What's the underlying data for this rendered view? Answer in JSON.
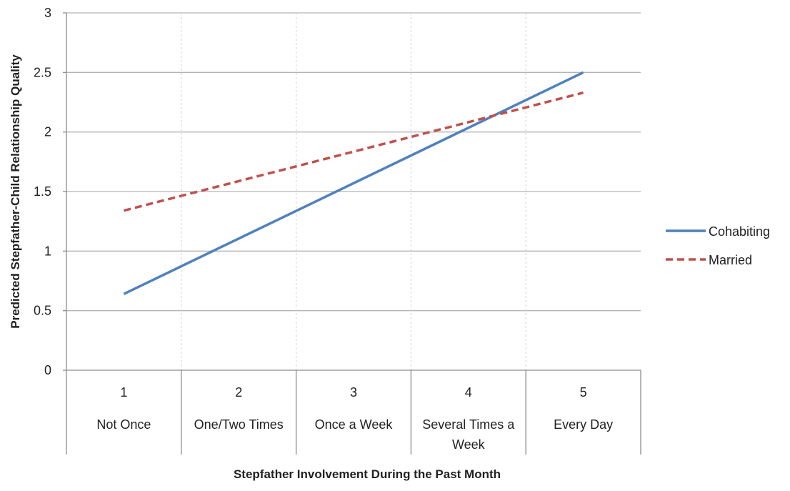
{
  "chart_data": {
    "type": "line",
    "xlabel": "Stepfather Involvement During the Past Month",
    "ylabel": "Predicted Stepfather-Child Relationship Quality",
    "ylim": [
      0,
      3
    ],
    "yticks": [
      "0",
      "0.5",
      "1",
      "1.5",
      "2",
      "2.5",
      "3"
    ],
    "categories": [
      {
        "number": "1",
        "label": [
          "Not Once"
        ]
      },
      {
        "number": "2",
        "label": [
          "One/Two Times"
        ]
      },
      {
        "number": "3",
        "label": [
          "Once a Week"
        ]
      },
      {
        "number": "4",
        "label": [
          "Several Times a",
          "Week"
        ]
      },
      {
        "number": "5",
        "label": [
          "Every Day"
        ]
      }
    ],
    "x": [
      1,
      5
    ],
    "series": [
      {
        "name": "Cohabiting",
        "color": "#4f81bd",
        "dashed": false,
        "values": [
          0.64,
          2.5
        ]
      },
      {
        "name": "Married",
        "color": "#c0504d",
        "dashed": true,
        "values": [
          1.34,
          2.33
        ]
      }
    ],
    "grid": true,
    "legend_position": "right"
  }
}
